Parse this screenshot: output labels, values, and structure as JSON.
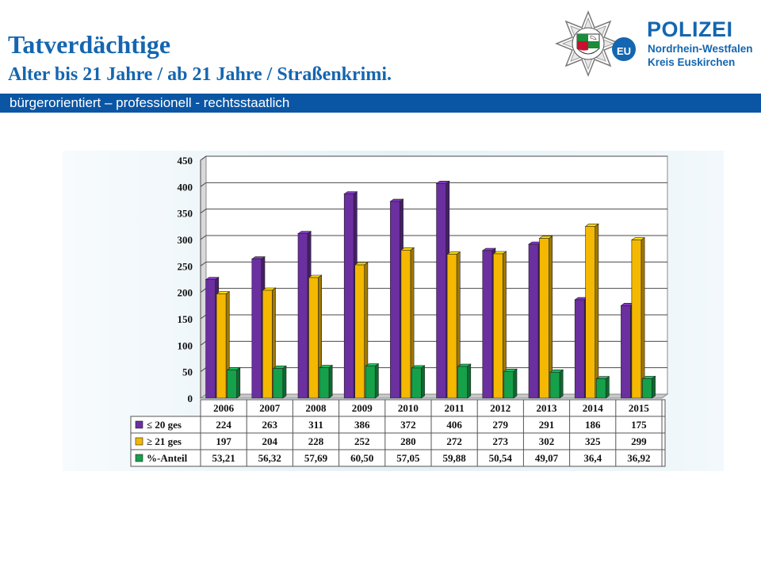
{
  "header": {
    "title": "Tatverdächtige",
    "subtitle": "Alter bis 21 Jahre / ab 21 Jahre / Straßenkrimi.",
    "tagline": "bürgerorientiert – professionell - rechtsstaatlich"
  },
  "logo": {
    "badge_text": "EU",
    "line1": "POLIZEI",
    "line2": "Nordrhein-Westfalen",
    "line3": "Kreis Euskirchen"
  },
  "colors": {
    "brand_blue": "#1466b0",
    "band_blue": "#0b56a4",
    "series_purple": "#6b2fa0",
    "series_yellow": "#f5b800",
    "series_green": "#15a14a"
  },
  "chart_data": {
    "type": "bar",
    "categories": [
      "2006",
      "2007",
      "2008",
      "2009",
      "2010",
      "2011",
      "2012",
      "2013",
      "2014",
      "2015"
    ],
    "series": [
      {
        "name": "≤ 20 ges",
        "values": [
          224,
          263,
          311,
          386,
          372,
          406,
          279,
          291,
          186,
          175
        ],
        "labels": [
          "224",
          "263",
          "311",
          "386",
          "372",
          "406",
          "279",
          "291",
          "186",
          "175"
        ],
        "color": "#6b2fa0"
      },
      {
        "name": "≥ 21 ges",
        "values": [
          197,
          204,
          228,
          252,
          280,
          272,
          273,
          302,
          325,
          299
        ],
        "labels": [
          "197",
          "204",
          "228",
          "252",
          "280",
          "272",
          "273",
          "302",
          "325",
          "299"
        ],
        "color": "#f5b800"
      },
      {
        "name": "%-Anteil",
        "values": [
          53.21,
          56.32,
          57.69,
          60.5,
          57.05,
          59.88,
          50.54,
          49.07,
          36.4,
          36.92
        ],
        "labels": [
          "53,21",
          "56,32",
          "57,69",
          "60,50",
          "57,05",
          "59,88",
          "50,54",
          "49,07",
          "36,4",
          "36,92"
        ],
        "color": "#15a14a"
      }
    ],
    "yticks": [
      "0",
      "50",
      "100",
      "150",
      "200",
      "250",
      "300",
      "350",
      "400",
      "450"
    ],
    "ylim": [
      0,
      450
    ],
    "grid": true,
    "legend": "data-table below chart"
  }
}
